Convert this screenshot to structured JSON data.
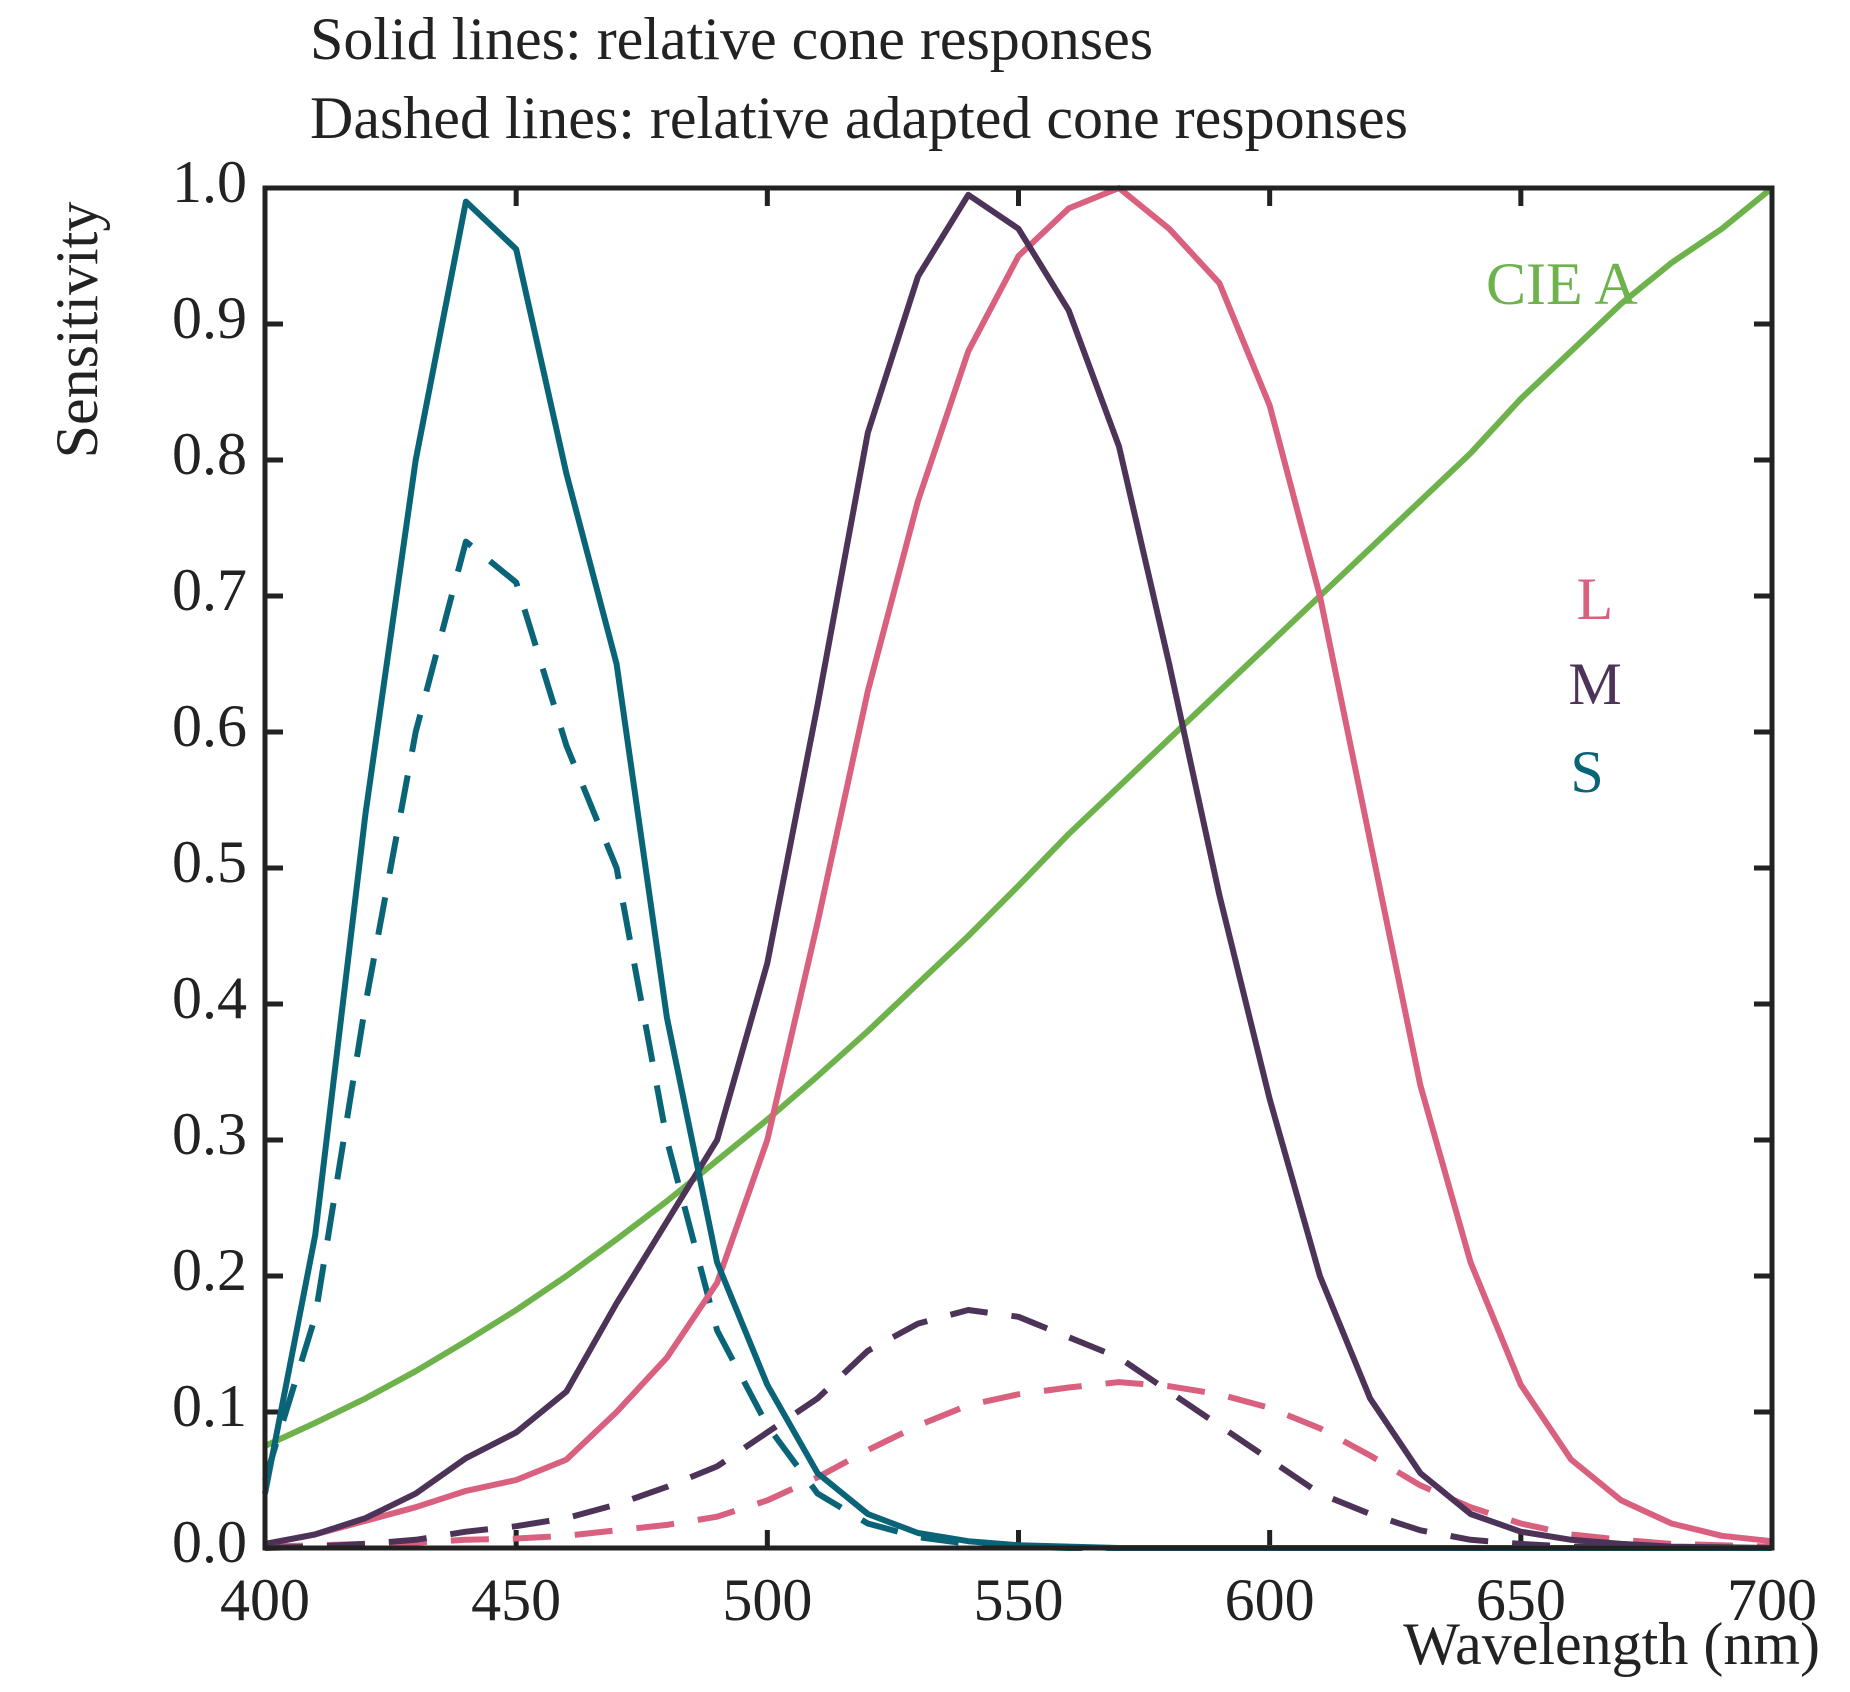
{
  "chart_data": {
    "type": "line",
    "title_lines": [
      "Solid lines: relative cone responses",
      "Dashed lines: relative adapted cone responses"
    ],
    "xlabel": "Wavelength (nm)",
    "ylabel": "Sensitivity",
    "x": [
      400,
      410,
      420,
      430,
      440,
      450,
      460,
      470,
      480,
      490,
      500,
      510,
      520,
      530,
      540,
      550,
      560,
      570,
      580,
      590,
      600,
      610,
      620,
      630,
      640,
      650,
      660,
      670,
      680,
      690,
      700
    ],
    "series": [
      {
        "name": "CIE A",
        "color": "#6db24a",
        "dashed": false,
        "values": [
          0.075,
          0.092,
          0.11,
          0.13,
          0.152,
          0.175,
          0.2,
          0.227,
          0.255,
          0.285,
          0.315,
          0.347,
          0.38,
          0.415,
          0.45,
          0.487,
          0.525,
          0.56,
          0.595,
          0.63,
          0.665,
          0.7,
          0.735,
          0.77,
          0.805,
          0.845,
          0.88,
          0.915,
          0.945,
          0.97,
          1.0
        ]
      },
      {
        "name": "L",
        "color": "#d9607f",
        "dashed": false,
        "values": [
          0.003,
          0.01,
          0.02,
          0.03,
          0.042,
          0.05,
          0.065,
          0.1,
          0.14,
          0.195,
          0.3,
          0.46,
          0.63,
          0.77,
          0.88,
          0.95,
          0.985,
          1.0,
          0.97,
          0.93,
          0.84,
          0.7,
          0.52,
          0.34,
          0.21,
          0.12,
          0.065,
          0.035,
          0.018,
          0.009,
          0.005
        ]
      },
      {
        "name": "M",
        "color": "#4d3357",
        "dashed": false,
        "values": [
          0.003,
          0.01,
          0.022,
          0.04,
          0.066,
          0.085,
          0.115,
          0.18,
          0.24,
          0.3,
          0.43,
          0.62,
          0.82,
          0.935,
          0.995,
          0.97,
          0.91,
          0.81,
          0.65,
          0.48,
          0.33,
          0.2,
          0.11,
          0.055,
          0.025,
          0.012,
          0.006,
          0.003,
          0.001,
          0.0005,
          0
        ]
      },
      {
        "name": "S",
        "color": "#0a6477",
        "dashed": false,
        "values": [
          0.04,
          0.23,
          0.54,
          0.8,
          0.99,
          0.955,
          0.79,
          0.65,
          0.39,
          0.21,
          0.12,
          0.055,
          0.025,
          0.011,
          0.005,
          0.002,
          0.001,
          0,
          0,
          0,
          0,
          0,
          0,
          0,
          0,
          0,
          0,
          0,
          0,
          0,
          0
        ]
      },
      {
        "color": "#d9607f",
        "dashed": true,
        "values": [
          0.001,
          0.002,
          0.003,
          0.004,
          0.006,
          0.007,
          0.009,
          0.013,
          0.017,
          0.023,
          0.035,
          0.052,
          0.072,
          0.09,
          0.105,
          0.113,
          0.118,
          0.122,
          0.119,
          0.113,
          0.103,
          0.088,
          0.068,
          0.046,
          0.03,
          0.018,
          0.01,
          0.006,
          0.003,
          0.002,
          0.001
        ]
      },
      {
        "color": "#4d3357",
        "dashed": true,
        "values": [
          0,
          0.001,
          0.003,
          0.006,
          0.012,
          0.016,
          0.022,
          0.032,
          0.045,
          0.06,
          0.085,
          0.11,
          0.145,
          0.165,
          0.175,
          0.17,
          0.155,
          0.14,
          0.115,
          0.09,
          0.065,
          0.04,
          0.025,
          0.013,
          0.006,
          0.003,
          0.001,
          0.001,
          0,
          0,
          0
        ]
      },
      {
        "color": "#0a6477",
        "dashed": true,
        "values": [
          0.05,
          0.17,
          0.4,
          0.6,
          0.74,
          0.71,
          0.59,
          0.5,
          0.3,
          0.16,
          0.09,
          0.04,
          0.018,
          0.008,
          0.003,
          0.001,
          0,
          0,
          0,
          0,
          0,
          0,
          0,
          0,
          0,
          0,
          0,
          0,
          0,
          0,
          0
        ]
      }
    ],
    "xlim": [
      400,
      700
    ],
    "xticks": [
      400,
      450,
      500,
      550,
      600,
      650,
      700
    ],
    "ylim": [
      0,
      1
    ],
    "yticks": [
      {
        "value": 0,
        "label": "0.0"
      },
      {
        "value": 0.1,
        "label": "0.1"
      },
      {
        "value": 0.2,
        "label": "0.2"
      },
      {
        "value": 0.3,
        "label": "0.3"
      },
      {
        "value": 0.4,
        "label": "0.4"
      },
      {
        "value": 0.5,
        "label": "0.5"
      },
      {
        "value": 0.6,
        "label": "0.6"
      },
      {
        "value": 0.7,
        "label": "0.7"
      },
      {
        "value": 0.8,
        "label": "0.8"
      },
      {
        "value": 0.9,
        "label": "0.9"
      },
      {
        "value": 1,
        "label": "1.0"
      }
    ],
    "grid": false
  }
}
